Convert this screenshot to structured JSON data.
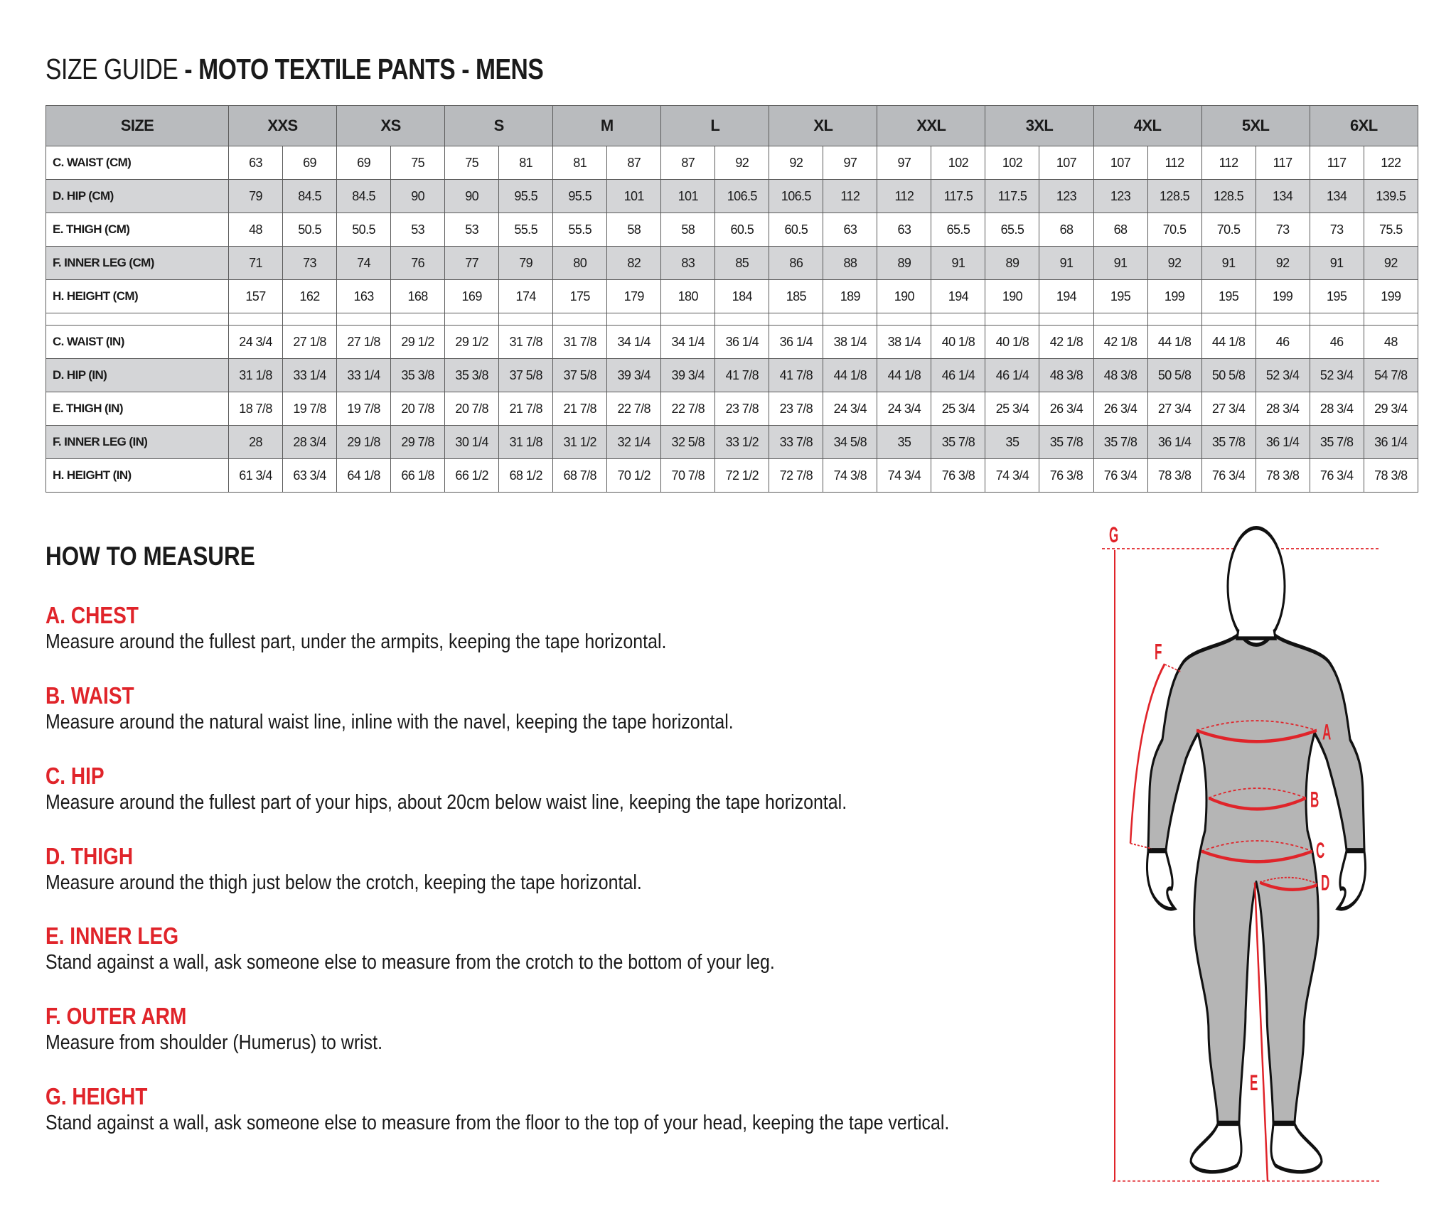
{
  "title": {
    "prefix": "SIZE GUIDE ",
    "main": "- MOTO TEXTILE PANTS - MENS"
  },
  "table": {
    "size_header": "SIZE",
    "sizes": [
      "XXS",
      "XS",
      "S",
      "M",
      "L",
      "XL",
      "XXL",
      "3XL",
      "4XL",
      "5XL",
      "6XL"
    ],
    "cm_rows": [
      {
        "label": "C. WAIST (CM)",
        "values": [
          "63",
          "69",
          "69",
          "75",
          "75",
          "81",
          "81",
          "87",
          "87",
          "92",
          "92",
          "97",
          "97",
          "102",
          "102",
          "107",
          "107",
          "112",
          "112",
          "117",
          "117",
          "122"
        ]
      },
      {
        "label": "D. HIP (CM)",
        "values": [
          "79",
          "84.5",
          "84.5",
          "90",
          "90",
          "95.5",
          "95.5",
          "101",
          "101",
          "106.5",
          "106.5",
          "112",
          "112",
          "117.5",
          "117.5",
          "123",
          "123",
          "128.5",
          "128.5",
          "134",
          "134",
          "139.5"
        ]
      },
      {
        "label": "E. THIGH (CM)",
        "values": [
          "48",
          "50.5",
          "50.5",
          "53",
          "53",
          "55.5",
          "55.5",
          "58",
          "58",
          "60.5",
          "60.5",
          "63",
          "63",
          "65.5",
          "65.5",
          "68",
          "68",
          "70.5",
          "70.5",
          "73",
          "73",
          "75.5"
        ]
      },
      {
        "label": "F. INNER LEG (CM)",
        "values": [
          "71",
          "73",
          "74",
          "76",
          "77",
          "79",
          "80",
          "82",
          "83",
          "85",
          "86",
          "88",
          "89",
          "91",
          "89",
          "91",
          "91",
          "92",
          "91",
          "92",
          "91",
          "92"
        ]
      },
      {
        "label": "H. HEIGHT (CM)",
        "values": [
          "157",
          "162",
          "163",
          "168",
          "169",
          "174",
          "175",
          "179",
          "180",
          "184",
          "185",
          "189",
          "190",
          "194",
          "190",
          "194",
          "195",
          "199",
          "195",
          "199",
          "195",
          "199"
        ]
      }
    ],
    "in_rows": [
      {
        "label": "C. WAIST (IN)",
        "values": [
          "24 3/4",
          "27 1/8",
          "27 1/8",
          "29 1/2",
          "29 1/2",
          "31 7/8",
          "31 7/8",
          "34 1/4",
          "34 1/4",
          "36 1/4",
          "36 1/4",
          "38 1/4",
          "38 1/4",
          "40 1/8",
          "40 1/8",
          "42 1/8",
          "42 1/8",
          "44 1/8",
          "44 1/8",
          "46",
          "46",
          "48"
        ]
      },
      {
        "label": "D. HIP (IN)",
        "values": [
          "31 1/8",
          "33 1/4",
          "33 1/4",
          "35 3/8",
          "35 3/8",
          "37 5/8",
          "37 5/8",
          "39 3/4",
          "39 3/4",
          "41 7/8",
          "41 7/8",
          "44 1/8",
          "44 1/8",
          "46 1/4",
          "46 1/4",
          "48 3/8",
          "48 3/8",
          "50 5/8",
          "50 5/8",
          "52 3/4",
          "52 3/4",
          "54 7/8"
        ]
      },
      {
        "label": "E. THIGH (IN)",
        "values": [
          "18 7/8",
          "19 7/8",
          "19 7/8",
          "20 7/8",
          "20 7/8",
          "21 7/8",
          "21 7/8",
          "22 7/8",
          "22 7/8",
          "23 7/8",
          "23 7/8",
          "24 3/4",
          "24 3/4",
          "25 3/4",
          "25 3/4",
          "26 3/4",
          "26 3/4",
          "27 3/4",
          "27 3/4",
          "28 3/4",
          "28 3/4",
          "29 3/4"
        ]
      },
      {
        "label": "F. INNER LEG (IN)",
        "values": [
          "28",
          "28 3/4",
          "29 1/8",
          "29 7/8",
          "30 1/4",
          "31 1/8",
          "31 1/2",
          "32 1/4",
          "32 5/8",
          "33 1/2",
          "33 7/8",
          "34 5/8",
          "35",
          "35 7/8",
          "35",
          "35 7/8",
          "35 7/8",
          "36 1/4",
          "35 7/8",
          "36 1/4",
          "35 7/8",
          "36 1/4"
        ]
      },
      {
        "label": "H. HEIGHT (IN)",
        "values": [
          "61 3/4",
          "63 3/4",
          "64 1/8",
          "66 1/8",
          "66 1/2",
          "68 1/2",
          "68 7/8",
          "70 1/2",
          "70 7/8",
          "72 1/2",
          "72 7/8",
          "74 3/8",
          "74 3/4",
          "76 3/8",
          "74 3/4",
          "76 3/8",
          "76 3/4",
          "78 3/8",
          "76 3/4",
          "78 3/8",
          "76 3/4",
          "78 3/8"
        ]
      }
    ]
  },
  "how_to_measure": {
    "heading": "HOW TO MEASURE",
    "items": [
      {
        "title": "A. CHEST",
        "text": "Measure around the fullest part, under the armpits, keeping the tape horizontal."
      },
      {
        "title": "B. WAIST",
        "text": "Measure around the natural waist line, inline with the navel, keeping the tape horizontal."
      },
      {
        "title": "C. HIP",
        "text": "Measure around the fullest part of your hips, about 20cm below waist line, keeping the tape horizontal."
      },
      {
        "title": "D. THIGH",
        "text": "Measure around the thigh just below the crotch, keeping the tape horizontal."
      },
      {
        "title": "E. INNER LEG",
        "text": "Stand against a wall, ask someone else to measure from the crotch to the bottom of your leg."
      },
      {
        "title": "F. OUTER ARM",
        "text": "Measure from shoulder (Humerus) to wrist."
      },
      {
        "title": "G. HEIGHT",
        "text": "Stand against a wall, ask someone else to measure from the floor to the top of your head, keeping the tape vertical."
      }
    ]
  },
  "figure": {
    "labels": {
      "a": "A",
      "b": "B",
      "c": "C",
      "d": "D",
      "e": "E",
      "f": "F",
      "g": "G"
    },
    "colors": {
      "measure": "#e0242a",
      "suit": "#b5b5b5",
      "outline": "#111111"
    }
  },
  "colors": {
    "header_bg": "#b9bbbe",
    "alt_row_bg": "#d4d5d7",
    "accent": "#e0242a"
  }
}
